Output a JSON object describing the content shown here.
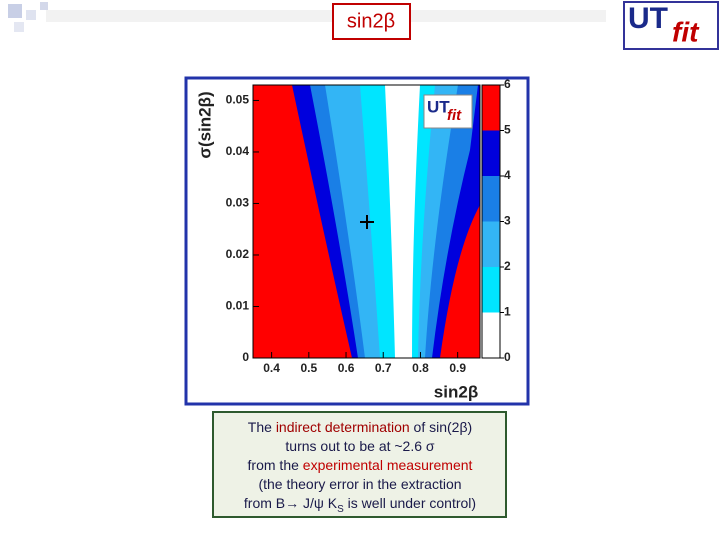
{
  "title": "sin2β",
  "logo": {
    "main": "UT",
    "sub": "fit"
  },
  "chart_data": {
    "type": "contour",
    "xlabel": "sin2β",
    "ylabel": "σ(sin2β)",
    "xlim": [
      0.35,
      0.96
    ],
    "ylim": [
      0,
      0.053
    ],
    "xticks": [
      0.4,
      0.5,
      0.6,
      0.7,
      0.8,
      0.9
    ],
    "yticks": [
      0,
      0.01,
      0.02,
      0.03,
      0.04,
      0.05
    ],
    "colorbar": {
      "lim": [
        0,
        6
      ],
      "ticks": [
        0,
        1,
        2,
        3,
        4,
        5,
        6
      ],
      "colors": [
        "#ffffff",
        "#00e5ff",
        "#33b5f5",
        "#1a7fe6",
        "#0000dd",
        "#ff0000"
      ]
    }
  },
  "caption": {
    "lines": [
      [
        {
          "text": "The "
        },
        {
          "text": "indirect determination",
          "color": "#a00000"
        },
        {
          "text": " of sin(2β)"
        }
      ],
      [
        {
          "text": "turns out to be at ~2.6 σ"
        }
      ],
      [
        {
          "text": "from the "
        },
        {
          "text": "experimental measurement",
          "color": "#c00000"
        }
      ],
      [
        {
          "text": "(the theory error in the extraction"
        }
      ],
      [
        {
          "text": "from B→ J/ψ K"
        },
        {
          "text": "S",
          "sub": true
        },
        {
          "text": " is well under control)"
        }
      ]
    ]
  }
}
